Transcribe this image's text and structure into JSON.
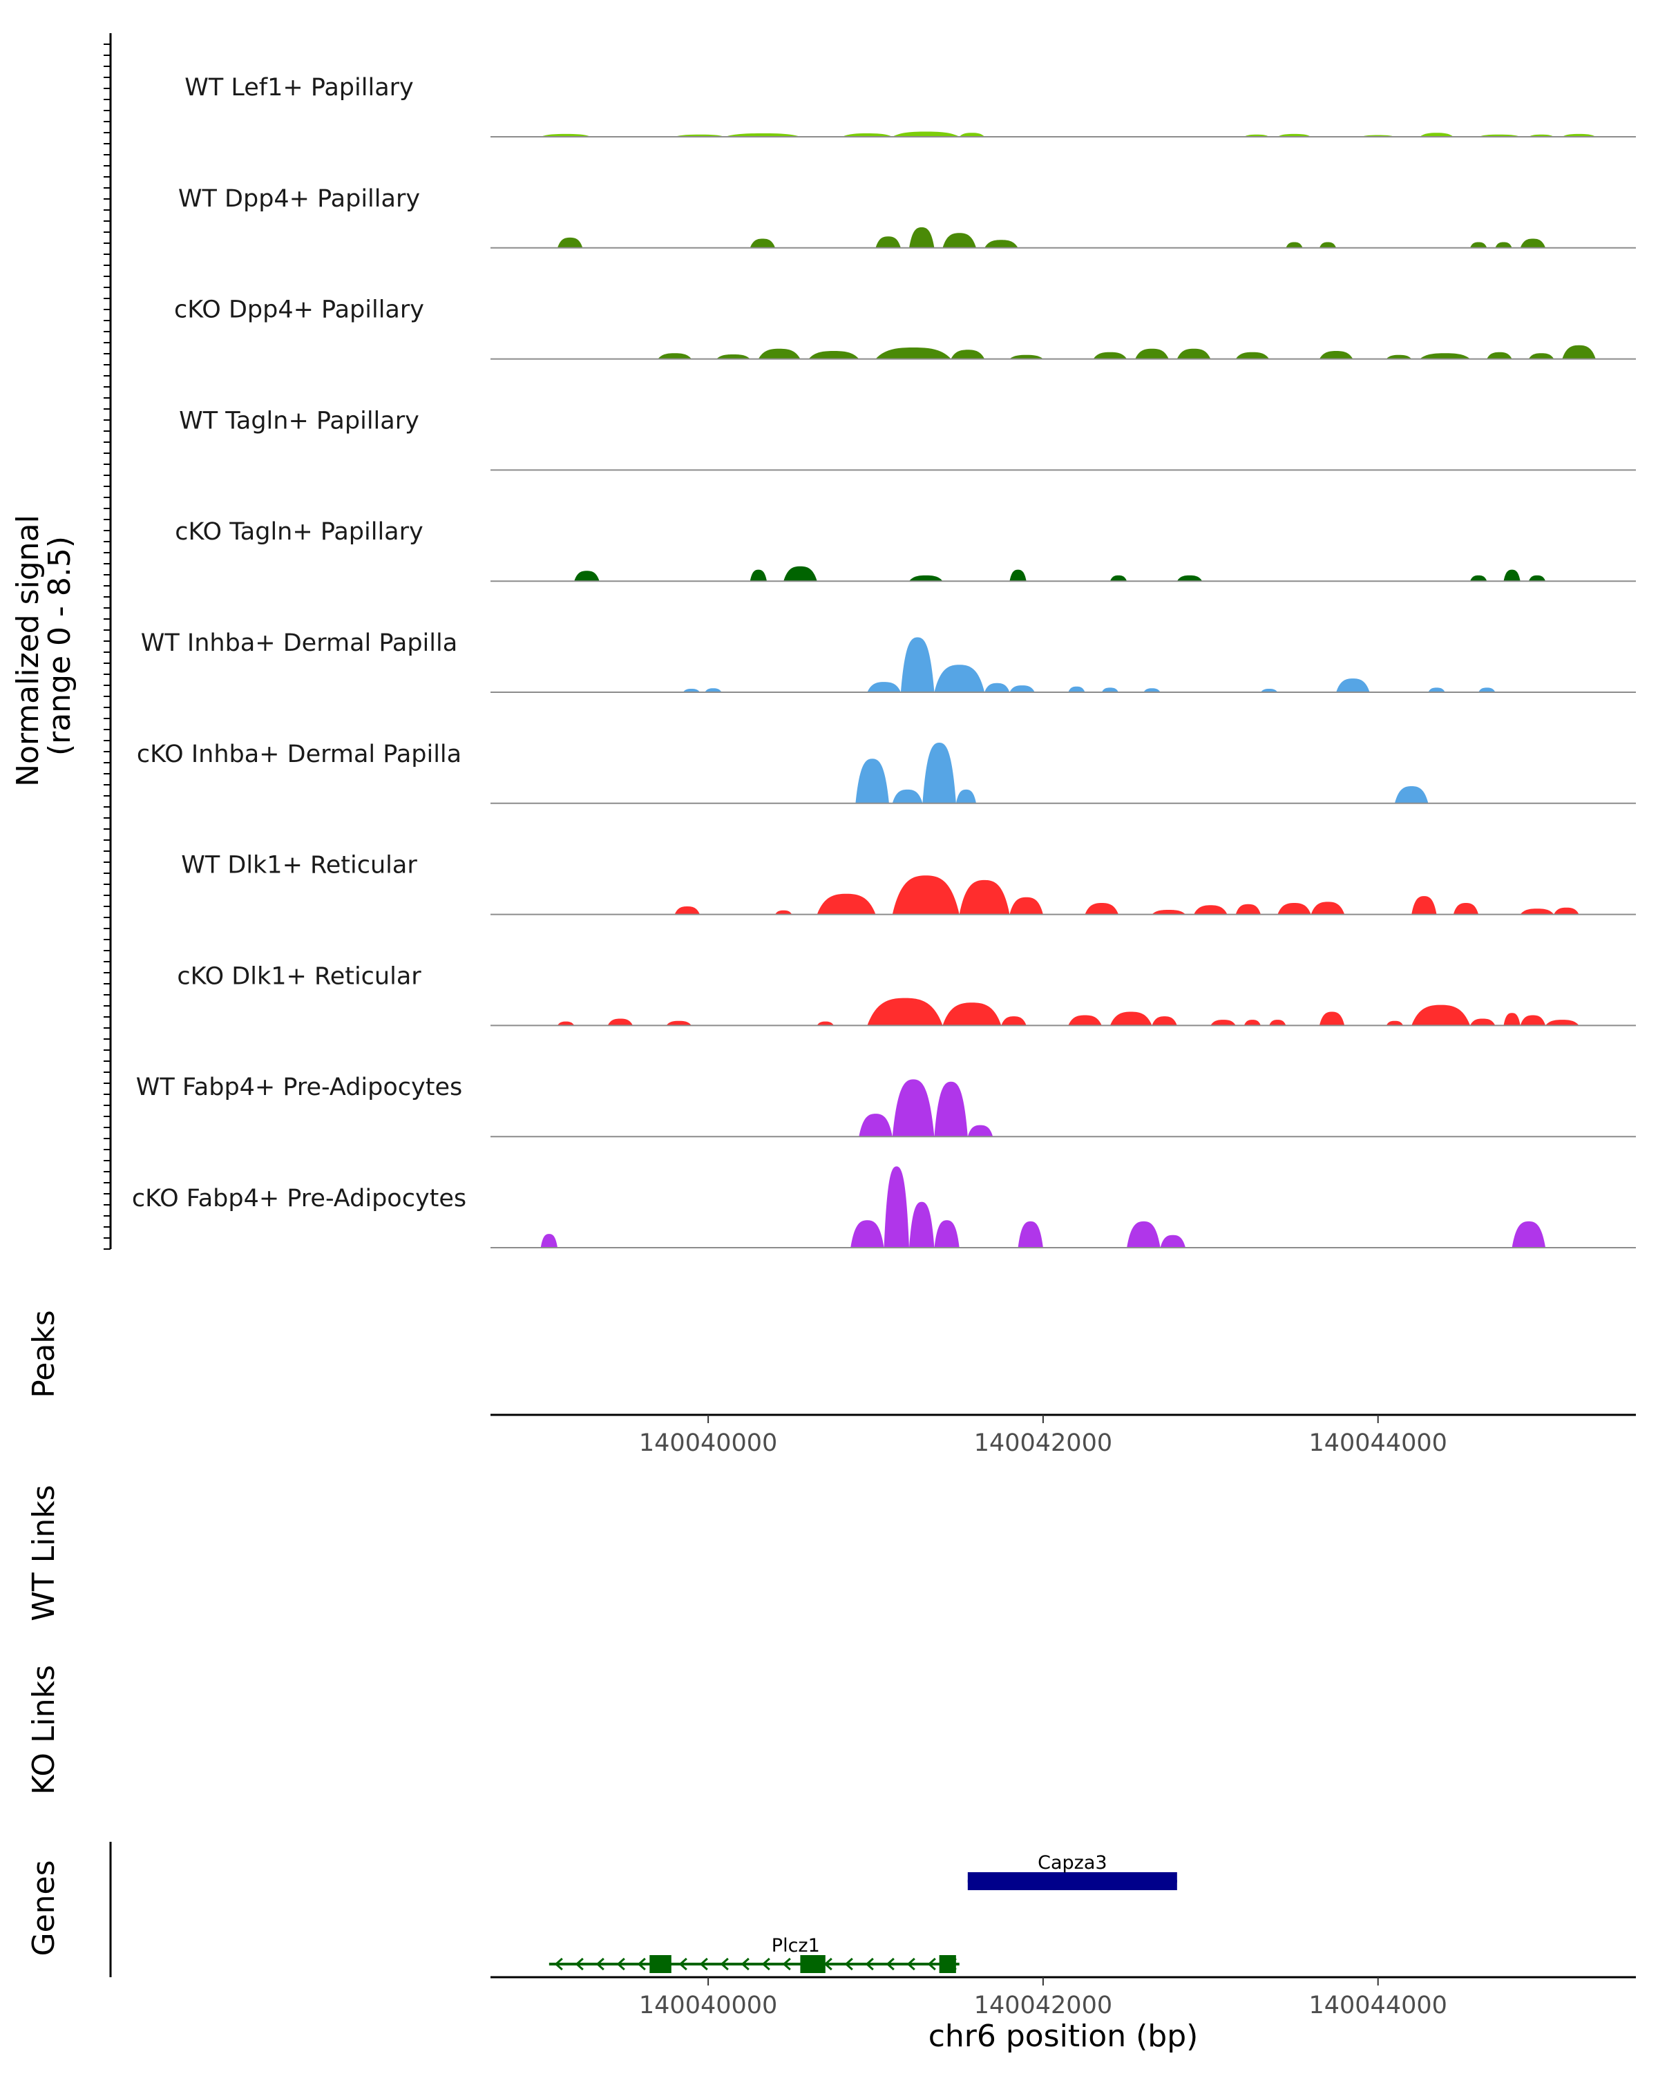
{
  "chart_data": {
    "type": "area",
    "chromosome": "chr6",
    "x_range": [
      140038700,
      140045540
    ],
    "signal_ylabel_line1": "Normalized signal",
    "signal_ylabel_line2": "(range 0 - 8.5)",
    "y_range": [
      0,
      8.5
    ],
    "tracks": [
      {
        "label": "WT Lef1+ Papillary",
        "color": "#7CCD0A",
        "regions": [
          [
            140039000,
            140039300,
            0.25
          ],
          [
            140039800,
            140040100,
            0.2
          ],
          [
            140040100,
            140040550,
            0.3
          ],
          [
            140040800,
            140041100,
            0.3
          ],
          [
            140041100,
            140041500,
            0.45
          ],
          [
            140041500,
            140041650,
            0.35
          ],
          [
            140043200,
            140043350,
            0.2
          ],
          [
            140043400,
            140043600,
            0.25
          ],
          [
            140043900,
            140044100,
            0.15
          ],
          [
            140044250,
            140044450,
            0.35
          ],
          [
            140044600,
            140044850,
            0.2
          ],
          [
            140044900,
            140045050,
            0.2
          ],
          [
            140045100,
            140045300,
            0.25
          ]
        ]
      },
      {
        "label": "WT Dpp4+ Papillary",
        "color": "#4A8A07",
        "regions": [
          [
            140039100,
            140039250,
            0.9
          ],
          [
            140040250,
            140040400,
            0.8
          ],
          [
            140041000,
            140041150,
            1.0
          ],
          [
            140041200,
            140041350,
            1.8
          ],
          [
            140041400,
            140041600,
            1.3
          ],
          [
            140041650,
            140041850,
            0.7
          ],
          [
            140043450,
            140043550,
            0.5
          ],
          [
            140043650,
            140043750,
            0.5
          ],
          [
            140044550,
            140044650,
            0.5
          ],
          [
            140044700,
            140044800,
            0.5
          ],
          [
            140044850,
            140045000,
            0.8
          ]
        ]
      },
      {
        "label": "cKO Dpp4+ Papillary",
        "color": "#4A8A07",
        "regions": [
          [
            140039700,
            140039900,
            0.5
          ],
          [
            140040050,
            140040250,
            0.4
          ],
          [
            140040300,
            140040550,
            0.9
          ],
          [
            140040600,
            140040900,
            0.7
          ],
          [
            140041000,
            140041450,
            1.0
          ],
          [
            140041450,
            140041650,
            0.8
          ],
          [
            140041800,
            140042000,
            0.35
          ],
          [
            140042300,
            140042500,
            0.6
          ],
          [
            140042550,
            140042750,
            0.9
          ],
          [
            140042800,
            140043000,
            0.9
          ],
          [
            140043150,
            140043350,
            0.6
          ],
          [
            140043650,
            140043850,
            0.7
          ],
          [
            140044050,
            140044200,
            0.35
          ],
          [
            140044250,
            140044550,
            0.5
          ],
          [
            140044650,
            140044800,
            0.6
          ],
          [
            140044900,
            140045050,
            0.5
          ],
          [
            140045100,
            140045300,
            1.2
          ]
        ]
      },
      {
        "label": "WT Tagln+ Papillary",
        "color": "#006400",
        "regions": []
      },
      {
        "label": "cKO Tagln+ Papillary",
        "color": "#006400",
        "regions": [
          [
            140039200,
            140039350,
            0.9
          ],
          [
            140040250,
            140040350,
            1.0
          ],
          [
            140040450,
            140040650,
            1.3
          ],
          [
            140041200,
            140041400,
            0.5
          ],
          [
            140041800,
            140041900,
            1.0
          ],
          [
            140042400,
            140042500,
            0.5
          ],
          [
            140042800,
            140042950,
            0.5
          ],
          [
            140044550,
            140044650,
            0.5
          ],
          [
            140044750,
            140044850,
            1.0
          ],
          [
            140044900,
            140045000,
            0.5
          ]
        ]
      },
      {
        "label": "WT Inhba+ Dermal Papilla",
        "color": "#56A5E5",
        "regions": [
          [
            140039850,
            140039950,
            0.3
          ],
          [
            140039980,
            140040080,
            0.35
          ],
          [
            140040950,
            140041150,
            0.9
          ],
          [
            140041150,
            140041350,
            4.8
          ],
          [
            140041350,
            140041650,
            2.4
          ],
          [
            140041650,
            140041800,
            0.8
          ],
          [
            140041800,
            140041950,
            0.6
          ],
          [
            140042150,
            140042250,
            0.5
          ],
          [
            140042350,
            140042450,
            0.4
          ],
          [
            140042600,
            140042700,
            0.35
          ],
          [
            140043300,
            140043400,
            0.3
          ],
          [
            140043750,
            140043950,
            1.2
          ],
          [
            140044300,
            140044400,
            0.4
          ],
          [
            140044600,
            140044700,
            0.4
          ]
        ]
      },
      {
        "label": "cKO Inhba+ Dermal Papilla",
        "color": "#56A5E5",
        "regions": [
          [
            140040880,
            140041080,
            3.9
          ],
          [
            140041100,
            140041280,
            1.2
          ],
          [
            140041280,
            140041480,
            5.3
          ],
          [
            140041480,
            140041600,
            1.2
          ],
          [
            140044100,
            140044300,
            1.5
          ]
        ]
      },
      {
        "label": "WT Dlk1+ Reticular",
        "color": "#FF2D2D",
        "regions": [
          [
            140039800,
            140039950,
            0.7
          ],
          [
            140040400,
            140040500,
            0.35
          ],
          [
            140040650,
            140041000,
            1.8
          ],
          [
            140041100,
            140041500,
            3.4
          ],
          [
            140041500,
            140041800,
            3.0
          ],
          [
            140041800,
            140042000,
            1.5
          ],
          [
            140042250,
            140042450,
            1.0
          ],
          [
            140042650,
            140042850,
            0.4
          ],
          [
            140042900,
            140043100,
            0.8
          ],
          [
            140043150,
            140043300,
            0.9
          ],
          [
            140043400,
            140043600,
            1.0
          ],
          [
            140043600,
            140043800,
            1.1
          ],
          [
            140044200,
            140044350,
            1.6
          ],
          [
            140044450,
            140044600,
            1.0
          ],
          [
            140044850,
            140045050,
            0.5
          ],
          [
            140045050,
            140045200,
            0.6
          ]
        ]
      },
      {
        "label": "cKO Dlk1+ Reticular",
        "color": "#FF2D2D",
        "regions": [
          [
            140039100,
            140039200,
            0.35
          ],
          [
            140039400,
            140039550,
            0.6
          ],
          [
            140039750,
            140039900,
            0.4
          ],
          [
            140040650,
            140040750,
            0.35
          ],
          [
            140040950,
            140041400,
            2.4
          ],
          [
            140041400,
            140041750,
            2.0
          ],
          [
            140041750,
            140041900,
            0.8
          ],
          [
            140042150,
            140042350,
            0.9
          ],
          [
            140042400,
            140042650,
            1.2
          ],
          [
            140042650,
            140042800,
            0.8
          ],
          [
            140043000,
            140043150,
            0.5
          ],
          [
            140043200,
            140043300,
            0.5
          ],
          [
            140043350,
            140043450,
            0.5
          ],
          [
            140043650,
            140043800,
            1.2
          ],
          [
            140044050,
            140044150,
            0.4
          ],
          [
            140044200,
            140044550,
            1.8
          ],
          [
            140044550,
            140044700,
            0.6
          ],
          [
            140044750,
            140044850,
            1.1
          ],
          [
            140044850,
            140045000,
            0.9
          ],
          [
            140045000,
            140045200,
            0.5
          ]
        ]
      },
      {
        "label": "WT Fabp4+ Pre-Adipocytes",
        "color": "#B036EA",
        "regions": [
          [
            140040900,
            140041100,
            2.0
          ],
          [
            140041100,
            140041350,
            5.0
          ],
          [
            140041350,
            140041550,
            4.8
          ],
          [
            140041550,
            140041700,
            1.0
          ]
        ]
      },
      {
        "label": "cKO Fabp4+ Pre-Adipocytes",
        "color": "#B036EA",
        "regions": [
          [
            140039000,
            140039100,
            1.2
          ],
          [
            140040850,
            140041050,
            2.4
          ],
          [
            140041050,
            140041200,
            7.1
          ],
          [
            140041200,
            140041350,
            4.0
          ],
          [
            140041350,
            140041500,
            2.4
          ],
          [
            140041850,
            140042000,
            2.3
          ],
          [
            140042500,
            140042700,
            2.3
          ],
          [
            140042700,
            140042850,
            1.1
          ],
          [
            140044800,
            140045000,
            2.3
          ]
        ]
      }
    ],
    "peaks_label": "Peaks",
    "wt_links_label": "WT Links",
    "ko_links_label": "KO Links",
    "genes_label": "Genes",
    "x_ticks": [
      140040000,
      140042000,
      140044000
    ],
    "x_tick_labels": [
      "140040000",
      "140042000",
      "140044000"
    ],
    "xlabel": "chr6 position (bp)",
    "genes": [
      {
        "name": "Capza3",
        "strand": "+",
        "start": 140041550,
        "end": 140042800,
        "color": "#00008B",
        "row": 0,
        "exons": [
          [
            140041550,
            140042800
          ]
        ]
      },
      {
        "name": "Plcz1",
        "strand": "-",
        "start": 140039050,
        "end": 140041500,
        "color": "#006400",
        "row": 1,
        "exons": [
          [
            140039650,
            140039780
          ],
          [
            140040550,
            140040700
          ],
          [
            140041380,
            140041480
          ]
        ]
      }
    ]
  }
}
